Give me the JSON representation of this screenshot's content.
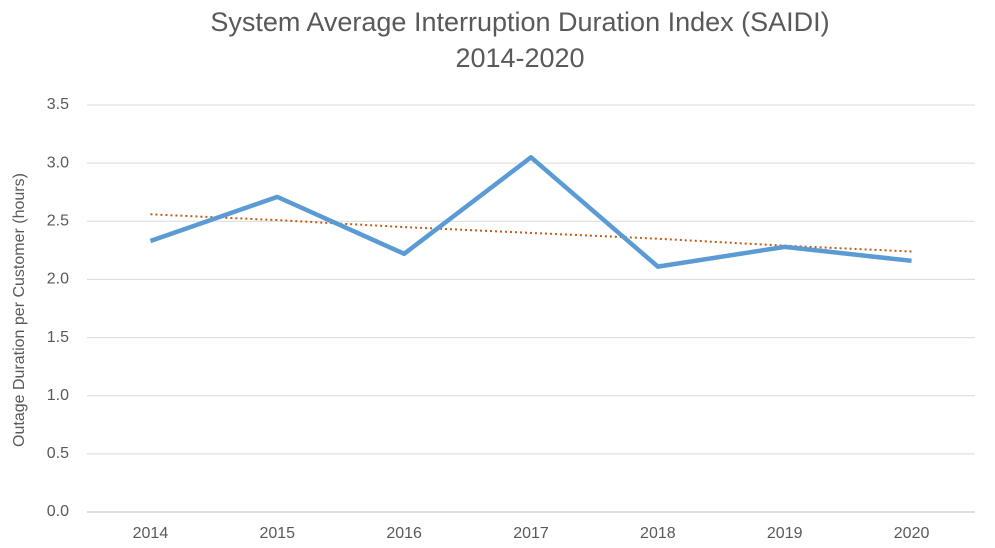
{
  "chart_data": {
    "type": "line",
    "title": "System Average Interruption Duration Index (SAIDI)",
    "subtitle": "2014-2020",
    "y_label": "Outage Duration per Customer (hours)",
    "categories": [
      "2014",
      "2015",
      "2016",
      "2017",
      "2018",
      "2019",
      "2020"
    ],
    "series": [
      {
        "color": "#5b9bd5",
        "values": [
          2.33,
          2.71,
          2.22,
          3.05,
          2.11,
          2.28,
          2.16
        ]
      }
    ],
    "trendline": {
      "color": "#c55a11",
      "values": [
        2.56,
        2.51,
        2.45,
        2.4,
        2.35,
        2.29,
        2.24
      ]
    },
    "ylim": [
      0,
      3.5
    ],
    "yticks": [
      {
        "value": 0,
        "label": "0.0"
      },
      0.5,
      {
        "value": 1,
        "label": "1.0"
      },
      1.5,
      {
        "value": 2,
        "label": "2.0"
      },
      2.5,
      {
        "value": 3,
        "label": "3.0"
      },
      3.5
    ],
    "grid": true
  }
}
